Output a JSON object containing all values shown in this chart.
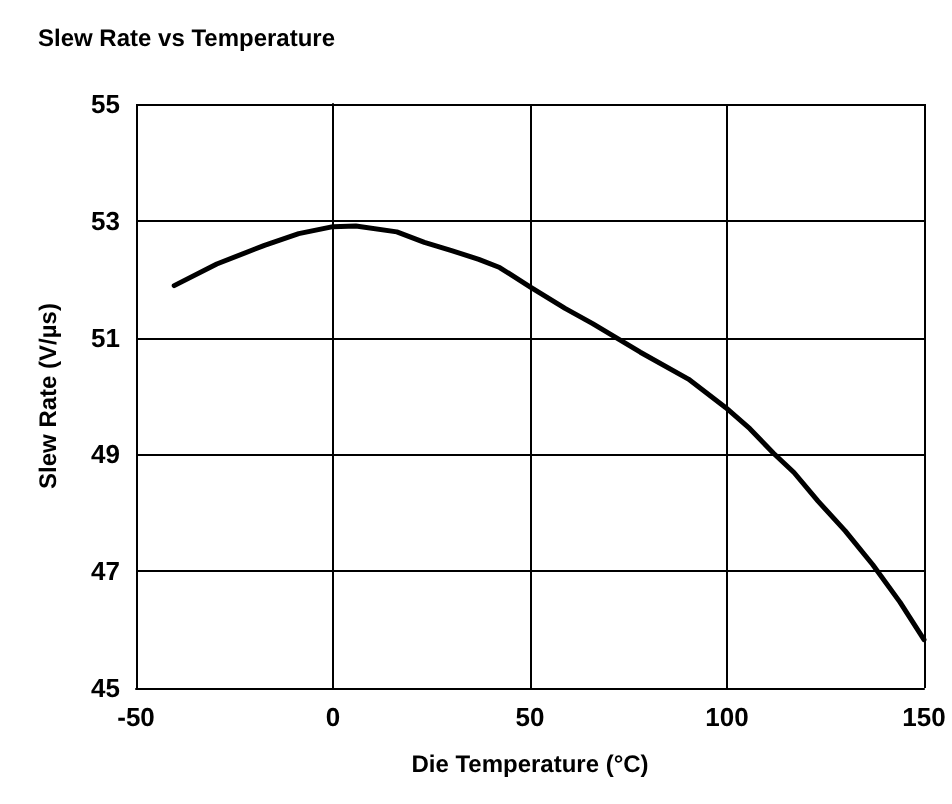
{
  "chart_data": {
    "type": "line",
    "title": "Slew Rate vs Temperature",
    "xlabel": "Die Temperature (°C)",
    "ylabel": "Slew Rate (V/µs)",
    "xlim": [
      -50,
      150
    ],
    "xticks": [
      -50,
      0,
      50,
      100,
      150
    ],
    "ylim": [
      45,
      55
    ],
    "yticks": [
      45,
      47,
      49,
      51,
      53,
      55
    ],
    "grid": true,
    "marker": "none",
    "line_style": "solid",
    "series": [
      {
        "color": "#000000",
        "x": [
          -40.3,
          -29.5,
          -17.4,
          -8.7,
          0,
          5.8,
          16.2,
          23.2,
          30.1,
          37,
          42.3,
          50,
          58.9,
          65.9,
          72.8,
          78,
          90.2,
          99.7,
          105.8,
          111.8,
          117,
          123.1,
          130,
          137,
          143.9,
          150
        ],
        "values": [
          51.89,
          52.26,
          52.58,
          52.78,
          52.9,
          52.91,
          52.81,
          52.63,
          52.49,
          52.34,
          52.2,
          51.87,
          51.5,
          51.24,
          50.96,
          50.75,
          50.29,
          49.8,
          49.44,
          49.02,
          48.69,
          48.2,
          47.69,
          47.11,
          46.47,
          45.83
        ]
      }
    ]
  }
}
